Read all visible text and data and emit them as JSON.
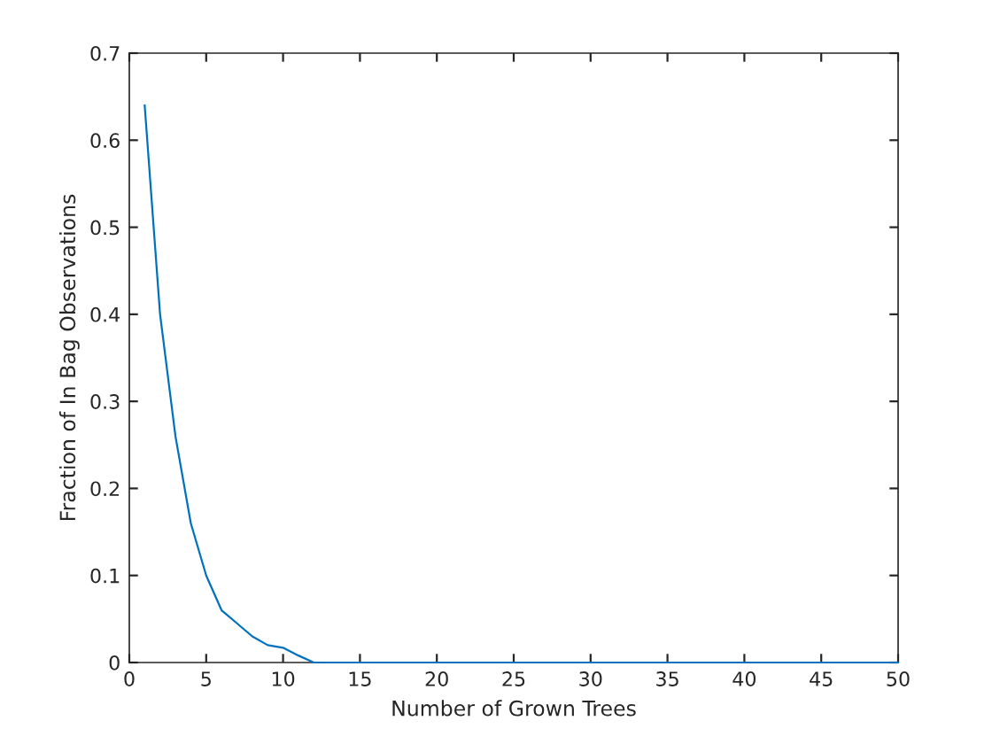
{
  "chart_data": {
    "type": "line",
    "xlabel": "Number of Grown Trees",
    "ylabel": "Fraction of In Bag Observations",
    "x": [
      1,
      2,
      3,
      4,
      5,
      6,
      7,
      8,
      9,
      10,
      11,
      12,
      13,
      14,
      15,
      16,
      17,
      18,
      19,
      20,
      21,
      22,
      23,
      24,
      25,
      26,
      27,
      28,
      29,
      30,
      31,
      32,
      33,
      34,
      35,
      36,
      37,
      38,
      39,
      40,
      41,
      42,
      43,
      44,
      45,
      46,
      47,
      48,
      49,
      50
    ],
    "series": [
      {
        "color": "#0072bd",
        "values": [
          0.64,
          0.4,
          0.26,
          0.16,
          0.1,
          0.06,
          0.045,
          0.03,
          0.02,
          0.017,
          0.008,
          0,
          0,
          0,
          0,
          0,
          0,
          0,
          0,
          0,
          0,
          0,
          0,
          0,
          0,
          0,
          0,
          0,
          0,
          0,
          0,
          0,
          0,
          0,
          0,
          0,
          0,
          0,
          0,
          0,
          0,
          0,
          0,
          0,
          0,
          0,
          0,
          0,
          0,
          0
        ]
      }
    ],
    "xlim": [
      0,
      50
    ],
    "xticks": [
      0,
      5,
      10,
      15,
      20,
      25,
      30,
      35,
      40,
      45,
      50
    ],
    "ylim": [
      0,
      0.7
    ],
    "yticks": [
      0,
      0.1,
      0.2,
      0.3,
      0.4,
      0.5,
      0.6,
      0.7
    ],
    "grid": false,
    "legend": false
  }
}
